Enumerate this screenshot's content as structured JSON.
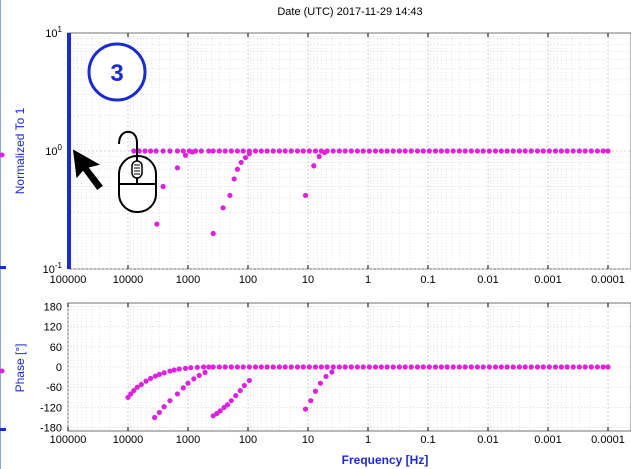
{
  "title": "Date (UTC) 2017-11-29 14:43",
  "step_badge": "3",
  "colors": {
    "points": "#e020e0",
    "axis_label": "#1a2bd0",
    "highlight_axis": "#1a2bd0",
    "grid": "#c8c8c8"
  },
  "icons": [
    "cursor-arrow-icon",
    "mouse-icon"
  ],
  "chart_data": [
    {
      "type": "scatter",
      "xscale": "log",
      "x_reversed": true,
      "xlim": [
        100000,
        0.0001
      ],
      "yscale": "log",
      "ylim": [
        0.1,
        10
      ],
      "ylabel": "Normalized To 1",
      "ytick_labels": [
        {
          "v": 10,
          "base": "10",
          "exp": "1"
        },
        {
          "v": 1,
          "base": "10",
          "exp": "0"
        },
        {
          "v": 0.1,
          "base": "10",
          "exp": "-1"
        }
      ],
      "xtick_labels": [
        {
          "v": 100000,
          "label": "100000"
        },
        {
          "v": 10000,
          "label": "10000"
        },
        {
          "v": 1000,
          "label": "1000"
        },
        {
          "v": 100,
          "label": "100"
        },
        {
          "v": 10,
          "label": "10"
        },
        {
          "v": 1,
          "label": "1"
        },
        {
          "v": 0.1,
          "label": "0.1"
        },
        {
          "v": 0.01,
          "label": "0.01"
        },
        {
          "v": 0.001,
          "label": "0.001"
        },
        {
          "v": 0.0001,
          "label": "0.0001"
        }
      ],
      "grid": true,
      "points": [
        [
          8000,
          1.0
        ],
        [
          6500,
          1.0
        ],
        [
          5200,
          1.0
        ],
        [
          4200,
          1.0
        ],
        [
          3400,
          1.0
        ],
        [
          2600,
          1.0
        ],
        [
          2000,
          1.0
        ],
        [
          1500,
          1.0
        ],
        [
          1200,
          1.0
        ],
        [
          950,
          1.0
        ],
        [
          750,
          1.0
        ],
        [
          600,
          1.0
        ],
        [
          450,
          1.0
        ],
        [
          380,
          1.0
        ],
        [
          300,
          1.0
        ],
        [
          240,
          1.0
        ],
        [
          190,
          1.0
        ],
        [
          150,
          1.0
        ],
        [
          120,
          1.0
        ],
        [
          95,
          1.0
        ],
        [
          75,
          1.0
        ],
        [
          60,
          1.0
        ],
        [
          48,
          1.0
        ],
        [
          38,
          1.0
        ],
        [
          30,
          1.0
        ],
        [
          24,
          1.0
        ],
        [
          19,
          1.0
        ],
        [
          15,
          1.0
        ],
        [
          12,
          1.0
        ],
        [
          9.5,
          1.0
        ],
        [
          7.5,
          1.0
        ],
        [
          6,
          1.0
        ],
        [
          4.8,
          1.0
        ],
        [
          3.8,
          1.0
        ],
        [
          3,
          1.0
        ],
        [
          2.4,
          1.0
        ],
        [
          1.9,
          1.0
        ],
        [
          1.5,
          1.0
        ],
        [
          1.2,
          1.0
        ],
        [
          0.95,
          1.0
        ],
        [
          0.75,
          1.0
        ],
        [
          0.6,
          1.0
        ],
        [
          0.48,
          1.0
        ],
        [
          0.38,
          1.0
        ],
        [
          0.3,
          1.0
        ],
        [
          0.24,
          1.0
        ],
        [
          0.19,
          1.0
        ],
        [
          0.15,
          1.0
        ],
        [
          0.12,
          1.0
        ],
        [
          0.095,
          1.0
        ],
        [
          0.075,
          1.0
        ],
        [
          0.06,
          1.0
        ],
        [
          0.048,
          1.0
        ],
        [
          0.038,
          1.0
        ],
        [
          0.03,
          1.0
        ],
        [
          0.024,
          1.0
        ],
        [
          0.019,
          1.0
        ],
        [
          0.015,
          1.0
        ],
        [
          0.012,
          1.0
        ],
        [
          0.0095,
          1.0
        ],
        [
          0.0075,
          1.0
        ],
        [
          0.006,
          1.0
        ],
        [
          0.0048,
          1.0
        ],
        [
          0.0038,
          1.0
        ],
        [
          0.003,
          1.0
        ],
        [
          0.0024,
          1.0
        ],
        [
          0.0019,
          1.0
        ],
        [
          0.0015,
          1.0
        ],
        [
          0.0012,
          1.0
        ],
        [
          0.00095,
          1.0
        ],
        [
          0.00075,
          1.0
        ],
        [
          0.0006,
          1.0
        ],
        [
          0.00048,
          1.0
        ],
        [
          0.00038,
          1.0
        ],
        [
          0.0003,
          1.0
        ],
        [
          0.00024,
          1.0
        ],
        [
          0.00019,
          1.0
        ],
        [
          0.00015,
          1.0
        ],
        [
          0.00012,
          1.0
        ],
        [
          0.0001,
          1.0
        ],
        [
          2600,
          0.5
        ],
        [
          3300,
          0.24
        ],
        [
          1500,
          0.72
        ],
        [
          1100,
          0.92
        ],
        [
          850,
          0.98
        ],
        [
          380,
          0.2
        ],
        [
          260,
          0.33
        ],
        [
          200,
          0.42
        ],
        [
          170,
          0.58
        ],
        [
          150,
          0.7
        ],
        [
          130,
          0.8
        ],
        [
          110,
          0.88
        ],
        [
          95,
          0.95
        ],
        [
          11,
          0.42
        ],
        [
          8,
          0.75
        ],
        [
          6.5,
          0.9
        ],
        [
          5.3,
          0.97
        ]
      ]
    },
    {
      "type": "scatter",
      "xscale": "log",
      "x_reversed": true,
      "xlim": [
        100000,
        0.0001
      ],
      "ylim": [
        -190,
        190
      ],
      "ylabel": "Phase [°]",
      "xlabel": "Frequency [Hz]",
      "yticks": [
        180,
        120,
        60,
        0,
        -60,
        -120,
        -180
      ],
      "ytick_labels": [
        "180",
        "120",
        "60",
        "0",
        "-60",
        "-120",
        "-180"
      ],
      "xtick_labels": [
        {
          "v": 100000,
          "label": "100000"
        },
        {
          "v": 10000,
          "label": "10000"
        },
        {
          "v": 1000,
          "label": "1000"
        },
        {
          "v": 100,
          "label": "100"
        },
        {
          "v": 10,
          "label": "10"
        },
        {
          "v": 1,
          "label": "1"
        },
        {
          "v": 0.1,
          "label": "0.1"
        },
        {
          "v": 0.01,
          "label": "0.01"
        },
        {
          "v": 0.001,
          "label": "0.001"
        },
        {
          "v": 0.0001,
          "label": "0.0001"
        }
      ],
      "grid": true,
      "points": [
        [
          10000,
          -90
        ],
        [
          9000,
          -80
        ],
        [
          8000,
          -70
        ],
        [
          7000,
          -60
        ],
        [
          6000,
          -52
        ],
        [
          5000,
          -42
        ],
        [
          4200,
          -34
        ],
        [
          3500,
          -27
        ],
        [
          3000,
          -22
        ],
        [
          2500,
          -17
        ],
        [
          2000,
          -12
        ],
        [
          1700,
          -9
        ],
        [
          1400,
          -6
        ],
        [
          1100,
          -4
        ],
        [
          900,
          -2
        ],
        [
          700,
          -1
        ],
        [
          550,
          0
        ],
        [
          450,
          0
        ],
        [
          380,
          0
        ],
        [
          300,
          0
        ],
        [
          240,
          0
        ],
        [
          190,
          0
        ],
        [
          150,
          0
        ],
        [
          120,
          0
        ],
        [
          95,
          0
        ],
        [
          75,
          0
        ],
        [
          60,
          0
        ],
        [
          48,
          0
        ],
        [
          38,
          0
        ],
        [
          30,
          0
        ],
        [
          24,
          0
        ],
        [
          19,
          0
        ],
        [
          15,
          0
        ],
        [
          12,
          0
        ],
        [
          9.5,
          0
        ],
        [
          7.5,
          0
        ],
        [
          6,
          0
        ],
        [
          4.8,
          0
        ],
        [
          3.8,
          0
        ],
        [
          3,
          0
        ],
        [
          2.4,
          0
        ],
        [
          1.9,
          0
        ],
        [
          1.5,
          0
        ],
        [
          1.2,
          0
        ],
        [
          0.95,
          0
        ],
        [
          0.75,
          0
        ],
        [
          0.6,
          0
        ],
        [
          0.48,
          0
        ],
        [
          0.38,
          0
        ],
        [
          0.3,
          0
        ],
        [
          0.24,
          0
        ],
        [
          0.19,
          0
        ],
        [
          0.15,
          0
        ],
        [
          0.12,
          0
        ],
        [
          0.095,
          0
        ],
        [
          0.075,
          0
        ],
        [
          0.06,
          0
        ],
        [
          0.048,
          0
        ],
        [
          0.038,
          0
        ],
        [
          0.03,
          0
        ],
        [
          0.024,
          0
        ],
        [
          0.019,
          0
        ],
        [
          0.015,
          0
        ],
        [
          0.012,
          0
        ],
        [
          0.0095,
          0
        ],
        [
          0.0075,
          0
        ],
        [
          0.006,
          0
        ],
        [
          0.0048,
          0
        ],
        [
          0.0038,
          0
        ],
        [
          0.003,
          0
        ],
        [
          0.0024,
          0
        ],
        [
          0.0019,
          0
        ],
        [
          0.0015,
          0
        ],
        [
          0.0012,
          0
        ],
        [
          0.00095,
          0
        ],
        [
          0.00075,
          0
        ],
        [
          0.0006,
          0
        ],
        [
          0.00048,
          0
        ],
        [
          0.00038,
          0
        ],
        [
          0.0003,
          0
        ],
        [
          0.00024,
          0
        ],
        [
          0.00019,
          0
        ],
        [
          0.00015,
          0
        ],
        [
          0.00012,
          0
        ],
        [
          0.0001,
          0
        ],
        [
          3600,
          -150
        ],
        [
          3000,
          -135
        ],
        [
          2500,
          -118
        ],
        [
          2000,
          -100
        ],
        [
          1500,
          -80
        ],
        [
          1200,
          -62
        ],
        [
          1000,
          -48
        ],
        [
          800,
          -35
        ],
        [
          650,
          -25
        ],
        [
          520,
          -16
        ],
        [
          380,
          -145
        ],
        [
          330,
          -138
        ],
        [
          290,
          -130
        ],
        [
          250,
          -120
        ],
        [
          220,
          -112
        ],
        [
          190,
          -100
        ],
        [
          160,
          -85
        ],
        [
          135,
          -70
        ],
        [
          115,
          -55
        ],
        [
          95,
          -40
        ],
        [
          11,
          -125
        ],
        [
          9,
          -100
        ],
        [
          7.5,
          -72
        ],
        [
          6.2,
          -48
        ],
        [
          5,
          -28
        ],
        [
          4,
          -15
        ]
      ]
    }
  ]
}
